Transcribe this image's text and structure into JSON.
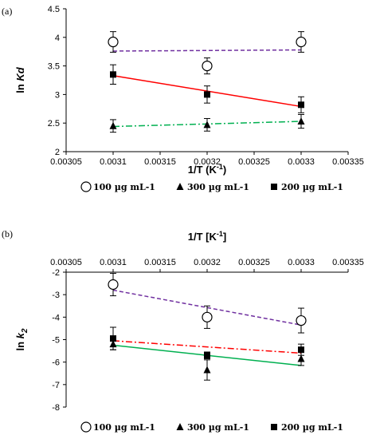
{
  "chart_data": [
    {
      "type": "scatter",
      "panel_label": "(a)",
      "xlabel": "1/T (K",
      "xlabel_sup": "-1",
      "xlabel_close": ")",
      "ylabel_prefix": "ln ",
      "ylabel_italic": "Kd",
      "ylabel_sub": "",
      "xlim": [
        0.00305,
        0.00335
      ],
      "ylim": [
        2,
        4.5
      ],
      "xticks": [
        "0.00305",
        "0.0031",
        "0.00315",
        "0.0032",
        "0.00325",
        "0.0033",
        "0.00335"
      ],
      "yticks": [
        "2",
        "2.5",
        "3",
        "3.5",
        "4",
        "4.5"
      ],
      "x_axis_position": "bottom",
      "grid": false,
      "legend_position": "bottom",
      "series": [
        {
          "name": "100 µg mL-1",
          "marker": "circle-open",
          "color": "#7030a0",
          "line_style": "dashed",
          "x": [
            0.0031,
            0.0032,
            0.0033
          ],
          "y": [
            3.92,
            3.5,
            3.92
          ],
          "err": [
            0.18,
            0.14,
            0.18
          ],
          "trend": [
            [
              0.0031,
              3.76
            ],
            [
              0.0033,
              3.78
            ]
          ]
        },
        {
          "name": "300 µg mL-1",
          "marker": "triangle",
          "color": "#00b050",
          "line_style": "dashdot",
          "x": [
            0.0031,
            0.0032,
            0.0033
          ],
          "y": [
            2.45,
            2.47,
            2.53
          ],
          "err": [
            0.11,
            0.11,
            0.12
          ],
          "trend": [
            [
              0.0031,
              2.44
            ],
            [
              0.0033,
              2.53
            ]
          ]
        },
        {
          "name": "200 µg mL-1",
          "marker": "square",
          "color": "#ff0000",
          "line_style": "solid",
          "x": [
            0.0031,
            0.0032,
            0.0033
          ],
          "y": [
            3.35,
            3.0,
            2.82
          ],
          "err": [
            0.17,
            0.15,
            0.14
          ],
          "trend": [
            [
              0.0031,
              3.33
            ],
            [
              0.0033,
              2.79
            ]
          ]
        }
      ]
    },
    {
      "type": "scatter",
      "panel_label": "(b)",
      "xlabel": "1/T [K",
      "xlabel_sup": "-1",
      "xlabel_close": "]",
      "ylabel_prefix": "ln ",
      "ylabel_italic": "k",
      "ylabel_sub": "2",
      "xlim": [
        0.00305,
        0.00335
      ],
      "ylim": [
        -8,
        -2
      ],
      "xticks": [
        "0.00305",
        "0.0031",
        "0.00315",
        "0.0032",
        "0.00325",
        "0.0033",
        "0.00335"
      ],
      "yticks": [
        "-8",
        "-7",
        "-6",
        "-5",
        "-4",
        "-3",
        "-2"
      ],
      "x_axis_position": "top",
      "grid": false,
      "legend_position": "bottom",
      "series": [
        {
          "name": "100 µg mL-1",
          "marker": "circle-open",
          "color": "#7030a0",
          "line_style": "dashed",
          "x": [
            0.0031,
            0.0032,
            0.0033
          ],
          "y": [
            -2.55,
            -4.0,
            -4.15
          ],
          "err": [
            0.5,
            0.5,
            0.55
          ],
          "trend": [
            [
              0.0031,
              -2.8
            ],
            [
              0.0033,
              -4.35
            ]
          ]
        },
        {
          "name": "300 µg mL-1",
          "marker": "triangle",
          "color": "#00b050",
          "line_style": "solid",
          "x": [
            0.0031,
            0.0032,
            0.0033
          ],
          "y": [
            -5.2,
            -6.35,
            -5.85
          ],
          "err": [
            0.25,
            0.45,
            0.3
          ],
          "trend": [
            [
              0.0031,
              -5.25
            ],
            [
              0.0033,
              -6.15
            ]
          ]
        },
        {
          "name": "200 µg mL-1",
          "marker": "square",
          "color": "#ff0000",
          "line_style": "dashdot",
          "x": [
            0.0031,
            0.0032,
            0.0033
          ],
          "y": [
            -4.95,
            -5.7,
            -5.45
          ],
          "err": [
            0.5,
            0.15,
            0.25
          ],
          "trend": [
            [
              0.0031,
              -5.05
            ],
            [
              0.0033,
              -5.6
            ]
          ]
        }
      ]
    }
  ]
}
